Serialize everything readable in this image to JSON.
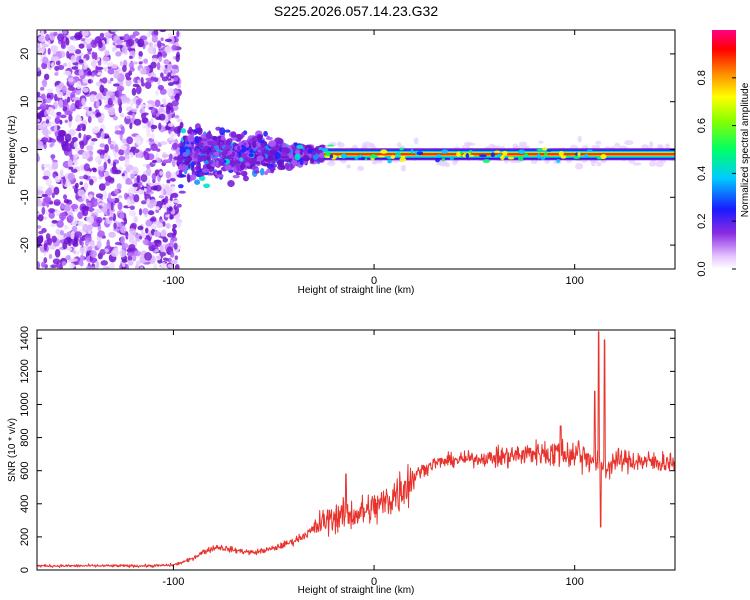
{
  "title": "S225.2026.057.14.23.G32",
  "colors": {
    "snr_line": "#e8332d",
    "frame": "#000000",
    "background": "#ffffff"
  },
  "chart_data": [
    {
      "type": "heatmap",
      "name": "spectrogram",
      "title": "S225.2026.057.14.23.G32",
      "xlabel": "Height of straight line (km)",
      "ylabel": "Frequency (Hz)",
      "xlim": [
        -168,
        150
      ],
      "ylim": [
        -25,
        25
      ],
      "xticks": [
        -100,
        0,
        100
      ],
      "yticks": [
        -20,
        -10,
        0,
        10,
        20
      ],
      "colorbar": {
        "label": "Normalized spectral amplitude",
        "range": [
          0,
          1
        ],
        "ticks": [
          0.0,
          0.2,
          0.4,
          0.6,
          0.8
        ],
        "tick_labels": [
          "0.0",
          "0.2",
          "0.4",
          "0.6",
          "0.8"
        ],
        "colormap": "rainbow (white-purple-blue-cyan-green-yellow-orange-red-magenta)"
      },
      "features": {
        "noise_region_x": [
          -168,
          -97
        ],
        "transition_region_x": [
          -97,
          -25
        ],
        "carrier_center_hz": -1,
        "strong_carrier_x": [
          -25,
          150
        ]
      }
    },
    {
      "type": "line",
      "name": "snr",
      "xlabel": "Height of straight line (km)",
      "ylabel": "SNR (10 * v/v)",
      "xlim": [
        -168,
        150
      ],
      "ylim": [
        0,
        1450
      ],
      "xticks": [
        -100,
        0,
        100
      ],
      "yticks": [
        0,
        200,
        400,
        600,
        800,
        1000,
        1200,
        1400
      ],
      "series": [
        {
          "name": "SNR",
          "baseline_x": [
            -168,
            -150,
            -130,
            -110,
            -100,
            -92,
            -85,
            -78,
            -70,
            -60,
            -50,
            -40,
            -32,
            -26,
            -20,
            -14,
            -8,
            -2,
            4,
            10,
            16,
            22,
            30,
            40,
            50,
            60,
            70,
            80,
            90,
            100,
            106,
            110,
            113,
            116,
            120,
            130,
            140,
            150
          ],
          "baseline_y": [
            25,
            25,
            25,
            25,
            30,
            60,
            110,
            140,
            120,
            105,
            130,
            175,
            230,
            285,
            320,
            330,
            340,
            365,
            395,
            450,
            520,
            590,
            645,
            665,
            672,
            678,
            690,
            710,
            705,
            700,
            690,
            660,
            640,
            620,
            660,
            660,
            650,
            655
          ],
          "spikes": [
            {
              "x": -14,
              "y": 580
            },
            {
              "x": 93,
              "y": 870
            },
            {
              "x": 102,
              "y": 780
            },
            {
              "x": 110,
              "y": 1080
            },
            {
              "x": 112,
              "y": 1440
            },
            {
              "x": 113,
              "y": 260
            },
            {
              "x": 115,
              "y": 1390
            }
          ]
        }
      ]
    }
  ]
}
